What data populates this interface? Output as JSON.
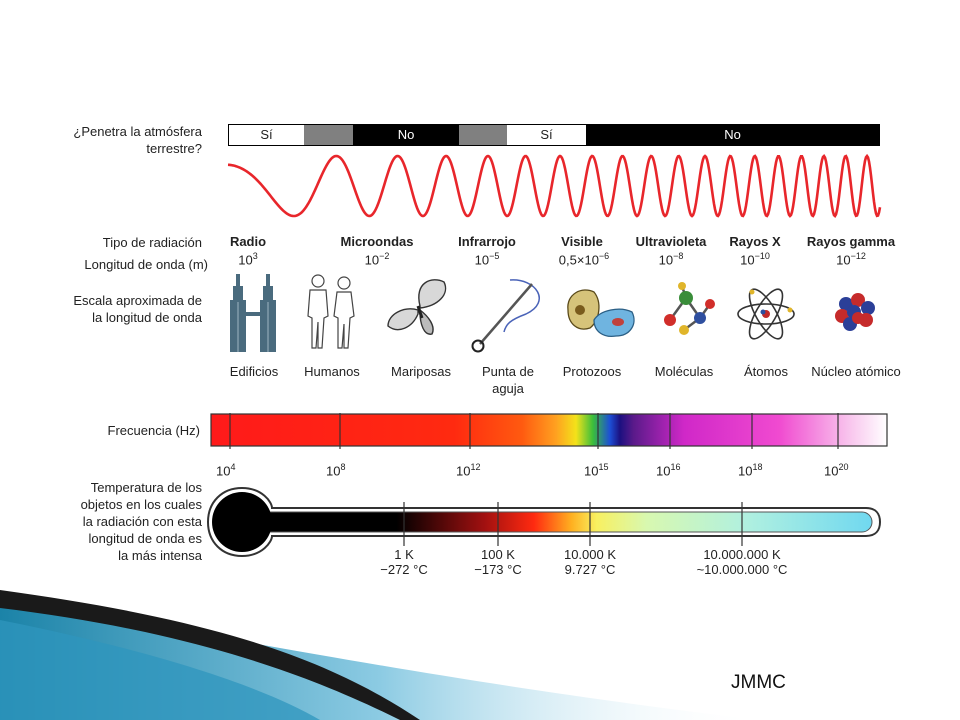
{
  "atmosphere": {
    "label": "¿Penetra la atmósfera\nterrestre?",
    "segments": [
      {
        "text": "Sí",
        "color": "#ffffff"
      },
      {
        "text": "",
        "color": "#808080"
      },
      {
        "text": "No",
        "color": "#000000"
      },
      {
        "text": "",
        "color": "#808080"
      },
      {
        "text": "Sí",
        "color": "#ffffff"
      },
      {
        "text": "No",
        "color": "#000000"
      }
    ],
    "wave_color": "#e8262b"
  },
  "labels": {
    "radiation_type": "Tipo de radiación",
    "wavelength": "Longitud de onda (m)",
    "scale": "Escala aproximada de\nla longitud de onda",
    "frequency": "Frecuencia (Hz)",
    "temperature": "Temperatura de los\nobjetos en los cuales\nla radiación con esta\nlongitud de onda es\nla más intensa"
  },
  "radiation": [
    {
      "name": "Radio",
      "wl_base": "10",
      "wl_exp": "3"
    },
    {
      "name": "Microondas",
      "wl_base": "10",
      "wl_exp": "−2"
    },
    {
      "name": "Infrarrojo",
      "wl_base": "10",
      "wl_exp": "−5"
    },
    {
      "name": "Visible",
      "wl_base": "0,5×10",
      "wl_exp": "−6"
    },
    {
      "name": "Ultravioleta",
      "wl_base": "10",
      "wl_exp": "−8"
    },
    {
      "name": "Rayos X",
      "wl_base": "10",
      "wl_exp": "−10"
    },
    {
      "name": "Rayos gamma",
      "wl_base": "10",
      "wl_exp": "−12"
    }
  ],
  "objects": [
    {
      "label": "Edificios",
      "icon": "buildings-icon"
    },
    {
      "label": "Humanos",
      "icon": "humans-icon"
    },
    {
      "label": "Mariposas",
      "icon": "butterfly-icon"
    },
    {
      "label": "Punta de\naguja",
      "icon": "needle-icon"
    },
    {
      "label": "Protozoos",
      "icon": "protozoa-icon"
    },
    {
      "label": "Moléculas",
      "icon": "molecule-icon"
    },
    {
      "label": "Átomos",
      "icon": "atom-icon"
    },
    {
      "label": "Núcleo atómico",
      "icon": "nucleus-icon"
    }
  ],
  "frequency_ticks": [
    {
      "base": "10",
      "exp": "4"
    },
    {
      "base": "10",
      "exp": "8"
    },
    {
      "base": "10",
      "exp": "12"
    },
    {
      "base": "10",
      "exp": "15"
    },
    {
      "base": "10",
      "exp": "16"
    },
    {
      "base": "10",
      "exp": "18"
    },
    {
      "base": "10",
      "exp": "20"
    }
  ],
  "temperature_ticks": [
    {
      "k": "1 K",
      "c": "−272 °C"
    },
    {
      "k": "100 K",
      "c": "−173 °C"
    },
    {
      "k": "10.000 K",
      "c": "9.727 °C"
    },
    {
      "k": "10.000.000 K",
      "c": "~10.000.000 °C"
    }
  ],
  "credit": "JMMC"
}
